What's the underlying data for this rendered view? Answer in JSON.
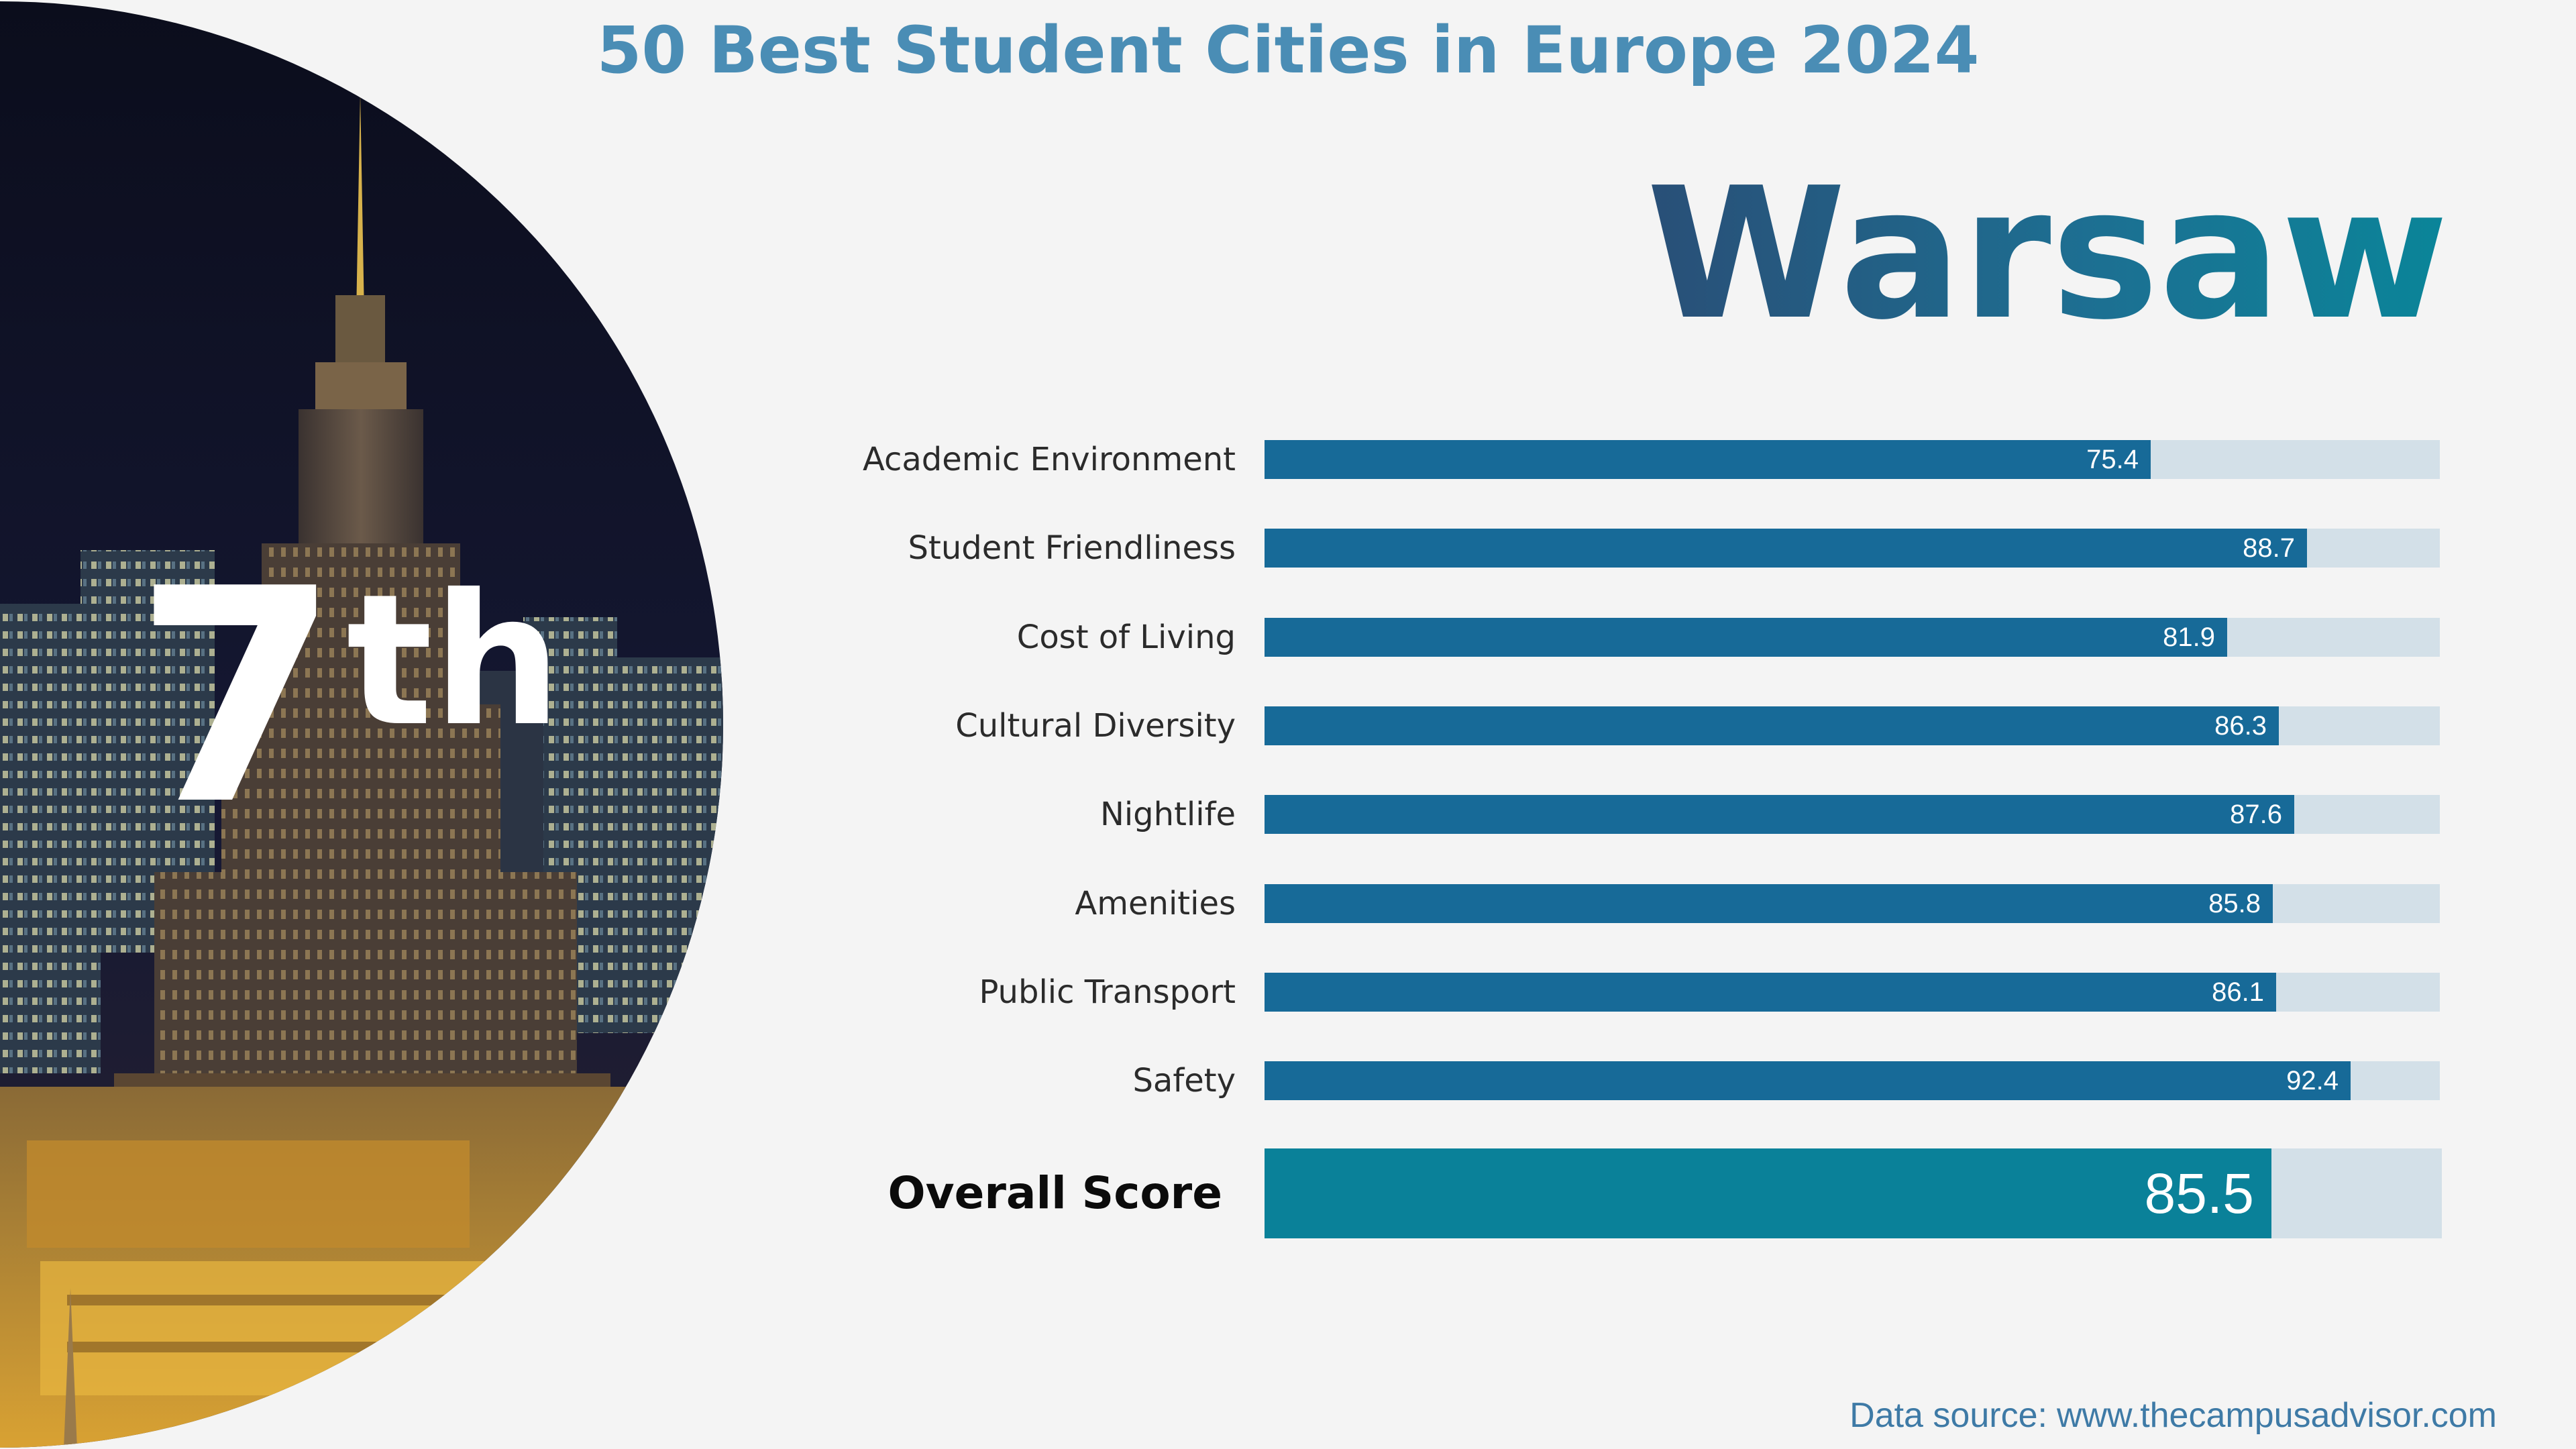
{
  "title": "50 Best Student Cities in Europe 2024",
  "city": "Warsaw",
  "rank": {
    "number": "7",
    "suffix": "th"
  },
  "photo": {
    "icon": "palace-of-culture-night-skyline-photo"
  },
  "colors": {
    "title": "#4a8db5",
    "bar": "#176a98",
    "bar_track": "#d3e0e8",
    "overall_bar": "#0a8199",
    "city_gradient": [
      "#294f77",
      "#0a8599"
    ]
  },
  "chart_data": {
    "type": "bar",
    "orientation": "horizontal",
    "title": "",
    "xlabel": "",
    "ylabel": "",
    "xlim": [
      0,
      100
    ],
    "grid": false,
    "categories": [
      "Academic Environment",
      "Student Friendliness",
      "Cost of Living",
      "Cultural Diversity",
      "Nightlife",
      "Amenities",
      "Public Transport",
      "Safety"
    ],
    "values": [
      75.4,
      88.7,
      81.9,
      86.3,
      87.6,
      85.8,
      86.1,
      92.4
    ],
    "value_labels": [
      "75.4",
      "88.7",
      "81.9",
      "86.3",
      "87.6",
      "85.8",
      "86.1",
      "92.4"
    ],
    "overall": {
      "label": "Overall Score",
      "value": 85.5,
      "value_label": "85.5"
    }
  },
  "source": {
    "label": "Data source:",
    "url": "www.thecampusadvisor.com"
  }
}
